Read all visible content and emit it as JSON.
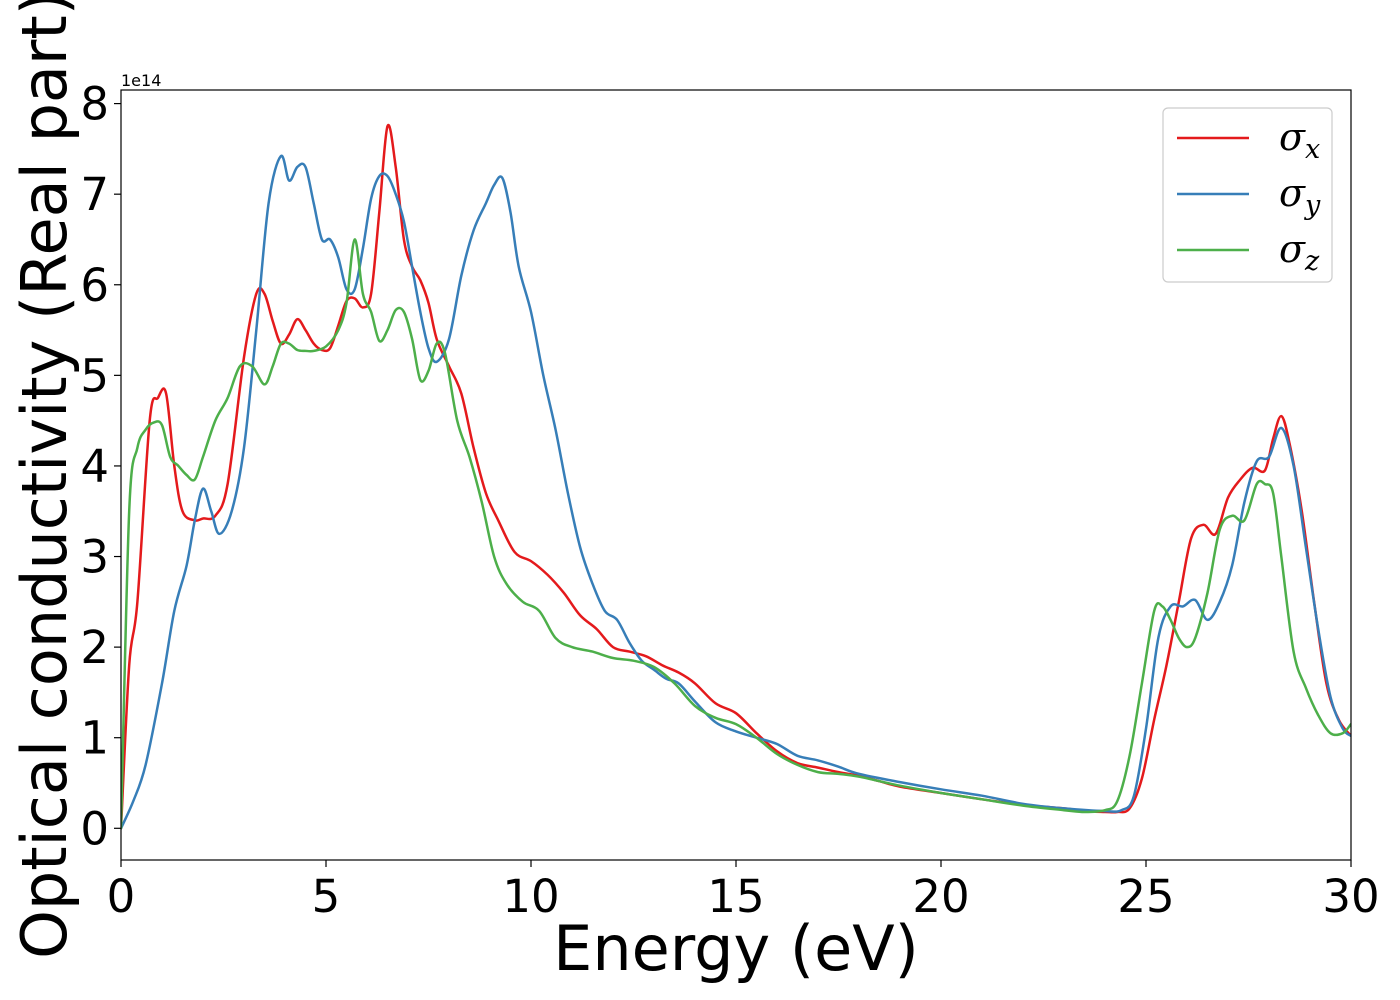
{
  "chart_data": {
    "type": "line",
    "xlabel": "Energy (eV)",
    "ylabel": "Optical conductivity (Real part)",
    "y_offset_label": "1e14",
    "xlim": [
      0,
      30
    ],
    "ylim": [
      -0.35,
      8.15
    ],
    "xticks": [
      0,
      5,
      10,
      15,
      20,
      25,
      30
    ],
    "yticks": [
      0,
      1,
      2,
      3,
      4,
      5,
      6,
      7,
      8
    ],
    "grid": false,
    "legend_position": "top-right",
    "series": [
      {
        "name": "σx",
        "color": "#e41a1c",
        "x": [
          0,
          0.2,
          0.4,
          0.7,
          0.9,
          1.1,
          1.3,
          1.5,
          1.8,
          2.0,
          2.3,
          2.6,
          3.0,
          3.3,
          3.5,
          3.7,
          3.9,
          4.1,
          4.3,
          4.5,
          4.7,
          4.9,
          5.1,
          5.3,
          5.5,
          5.7,
          5.9,
          6.1,
          6.3,
          6.5,
          6.7,
          6.9,
          7.1,
          7.3,
          7.5,
          7.7,
          8.0,
          8.3,
          8.6,
          8.9,
          9.2,
          9.6,
          10.0,
          10.4,
          10.8,
          11.2,
          11.6,
          12.0,
          12.4,
          12.8,
          13.2,
          13.6,
          14.0,
          14.5,
          15.0,
          15.5,
          16.0,
          16.5,
          17.0,
          17.5,
          18.0,
          18.5,
          19.0,
          20.0,
          21.0,
          22.0,
          23.0,
          23.5,
          24.0,
          24.3,
          24.6,
          24.9,
          25.2,
          25.5,
          25.8,
          26.1,
          26.4,
          26.7,
          27.0,
          27.3,
          27.6,
          27.9,
          28.1,
          28.3,
          28.5,
          28.8,
          29.1,
          29.4,
          29.7,
          30.0
        ],
        "y": [
          0,
          1.8,
          2.5,
          4.5,
          4.75,
          4.8,
          4.0,
          3.5,
          3.4,
          3.42,
          3.45,
          3.8,
          5.2,
          5.9,
          5.9,
          5.6,
          5.35,
          5.45,
          5.62,
          5.5,
          5.35,
          5.28,
          5.3,
          5.55,
          5.82,
          5.85,
          5.75,
          5.9,
          6.8,
          7.75,
          7.3,
          6.5,
          6.2,
          6.05,
          5.8,
          5.4,
          5.1,
          4.8,
          4.2,
          3.7,
          3.4,
          3.05,
          2.95,
          2.8,
          2.6,
          2.35,
          2.2,
          2.0,
          1.95,
          1.9,
          1.8,
          1.72,
          1.6,
          1.38,
          1.27,
          1.05,
          0.85,
          0.72,
          0.67,
          0.62,
          0.58,
          0.52,
          0.46,
          0.39,
          0.32,
          0.26,
          0.22,
          0.19,
          0.18,
          0.18,
          0.22,
          0.55,
          1.2,
          1.8,
          2.5,
          3.2,
          3.35,
          3.25,
          3.65,
          3.85,
          3.98,
          3.95,
          4.3,
          4.55,
          4.25,
          3.5,
          2.5,
          1.6,
          1.2,
          1.02
        ]
      },
      {
        "name": "σy",
        "color": "#377eb8",
        "x": [
          0,
          0.3,
          0.6,
          1.0,
          1.3,
          1.6,
          1.8,
          2.0,
          2.2,
          2.4,
          2.7,
          3.0,
          3.3,
          3.6,
          3.9,
          4.1,
          4.3,
          4.5,
          4.7,
          4.9,
          5.1,
          5.3,
          5.5,
          5.7,
          5.9,
          6.1,
          6.3,
          6.5,
          6.7,
          6.9,
          7.1,
          7.3,
          7.5,
          7.7,
          8.0,
          8.3,
          8.6,
          8.9,
          9.1,
          9.3,
          9.5,
          9.7,
          10.0,
          10.3,
          10.6,
          10.9,
          11.2,
          11.5,
          11.8,
          12.1,
          12.4,
          12.7,
          13.0,
          13.3,
          13.6,
          14.0,
          14.5,
          15.0,
          15.5,
          16.0,
          16.5,
          17.0,
          17.5,
          18.0,
          19.0,
          20.0,
          21.0,
          22.0,
          23.0,
          24.0,
          24.4,
          24.7,
          25.0,
          25.3,
          25.6,
          25.9,
          26.2,
          26.5,
          26.8,
          27.1,
          27.4,
          27.7,
          28.0,
          28.3,
          28.6,
          28.9,
          29.2,
          29.5,
          29.8,
          30.0
        ],
        "y": [
          0,
          0.3,
          0.7,
          1.6,
          2.4,
          2.9,
          3.4,
          3.75,
          3.5,
          3.25,
          3.5,
          4.2,
          5.5,
          6.9,
          7.42,
          7.15,
          7.3,
          7.3,
          6.9,
          6.5,
          6.5,
          6.3,
          5.95,
          5.95,
          6.4,
          6.95,
          7.2,
          7.2,
          7.0,
          6.7,
          6.2,
          5.7,
          5.3,
          5.15,
          5.4,
          6.1,
          6.6,
          6.9,
          7.1,
          7.18,
          6.8,
          6.2,
          5.7,
          5.0,
          4.4,
          3.7,
          3.1,
          2.7,
          2.4,
          2.3,
          2.05,
          1.85,
          1.75,
          1.65,
          1.6,
          1.4,
          1.17,
          1.07,
          1.0,
          0.93,
          0.8,
          0.75,
          0.68,
          0.6,
          0.51,
          0.43,
          0.36,
          0.27,
          0.22,
          0.19,
          0.2,
          0.35,
          1.1,
          2.1,
          2.45,
          2.45,
          2.52,
          2.3,
          2.5,
          2.9,
          3.6,
          4.05,
          4.1,
          4.42,
          4.0,
          3.1,
          2.2,
          1.45,
          1.1,
          1.02
        ]
      },
      {
        "name": "σz",
        "color": "#4daf4a",
        "x": [
          0,
          0.2,
          0.4,
          0.6,
          0.8,
          1.0,
          1.2,
          1.4,
          1.6,
          1.8,
          2.0,
          2.3,
          2.6,
          2.9,
          3.2,
          3.5,
          3.7,
          3.9,
          4.1,
          4.3,
          4.5,
          4.7,
          5.0,
          5.3,
          5.5,
          5.7,
          5.9,
          6.1,
          6.3,
          6.5,
          6.7,
          6.9,
          7.1,
          7.3,
          7.5,
          7.7,
          7.9,
          8.2,
          8.5,
          8.8,
          9.1,
          9.4,
          9.8,
          10.2,
          10.6,
          11.0,
          11.5,
          12.0,
          12.5,
          13.0,
          13.5,
          14.0,
          14.5,
          15.0,
          15.5,
          16.0,
          16.5,
          17.0,
          17.5,
          18.0,
          19.0,
          20.0,
          21.0,
          22.0,
          23.0,
          23.5,
          24.0,
          24.3,
          24.6,
          24.9,
          25.2,
          25.4,
          25.6,
          25.8,
          26.0,
          26.2,
          26.5,
          26.8,
          27.1,
          27.4,
          27.7,
          27.9,
          28.1,
          28.3,
          28.6,
          28.9,
          29.2,
          29.5,
          29.8,
          30.0
        ],
        "y": [
          0,
          3.5,
          4.2,
          4.4,
          4.48,
          4.45,
          4.1,
          4.0,
          3.9,
          3.85,
          4.1,
          4.5,
          4.75,
          5.1,
          5.1,
          4.9,
          5.1,
          5.35,
          5.35,
          5.28,
          5.27,
          5.27,
          5.32,
          5.5,
          5.8,
          6.5,
          5.9,
          5.7,
          5.38,
          5.5,
          5.72,
          5.7,
          5.4,
          4.95,
          5.05,
          5.35,
          5.25,
          4.5,
          4.1,
          3.6,
          3.0,
          2.7,
          2.5,
          2.4,
          2.1,
          2.0,
          1.95,
          1.88,
          1.85,
          1.78,
          1.6,
          1.35,
          1.22,
          1.15,
          1.0,
          0.82,
          0.7,
          0.62,
          0.6,
          0.57,
          0.47,
          0.39,
          0.32,
          0.25,
          0.2,
          0.18,
          0.2,
          0.3,
          0.8,
          1.6,
          2.4,
          2.45,
          2.3,
          2.1,
          2.0,
          2.1,
          2.6,
          3.3,
          3.45,
          3.4,
          3.8,
          3.8,
          3.7,
          3.0,
          1.95,
          1.55,
          1.25,
          1.05,
          1.05,
          1.15
        ]
      }
    ]
  }
}
